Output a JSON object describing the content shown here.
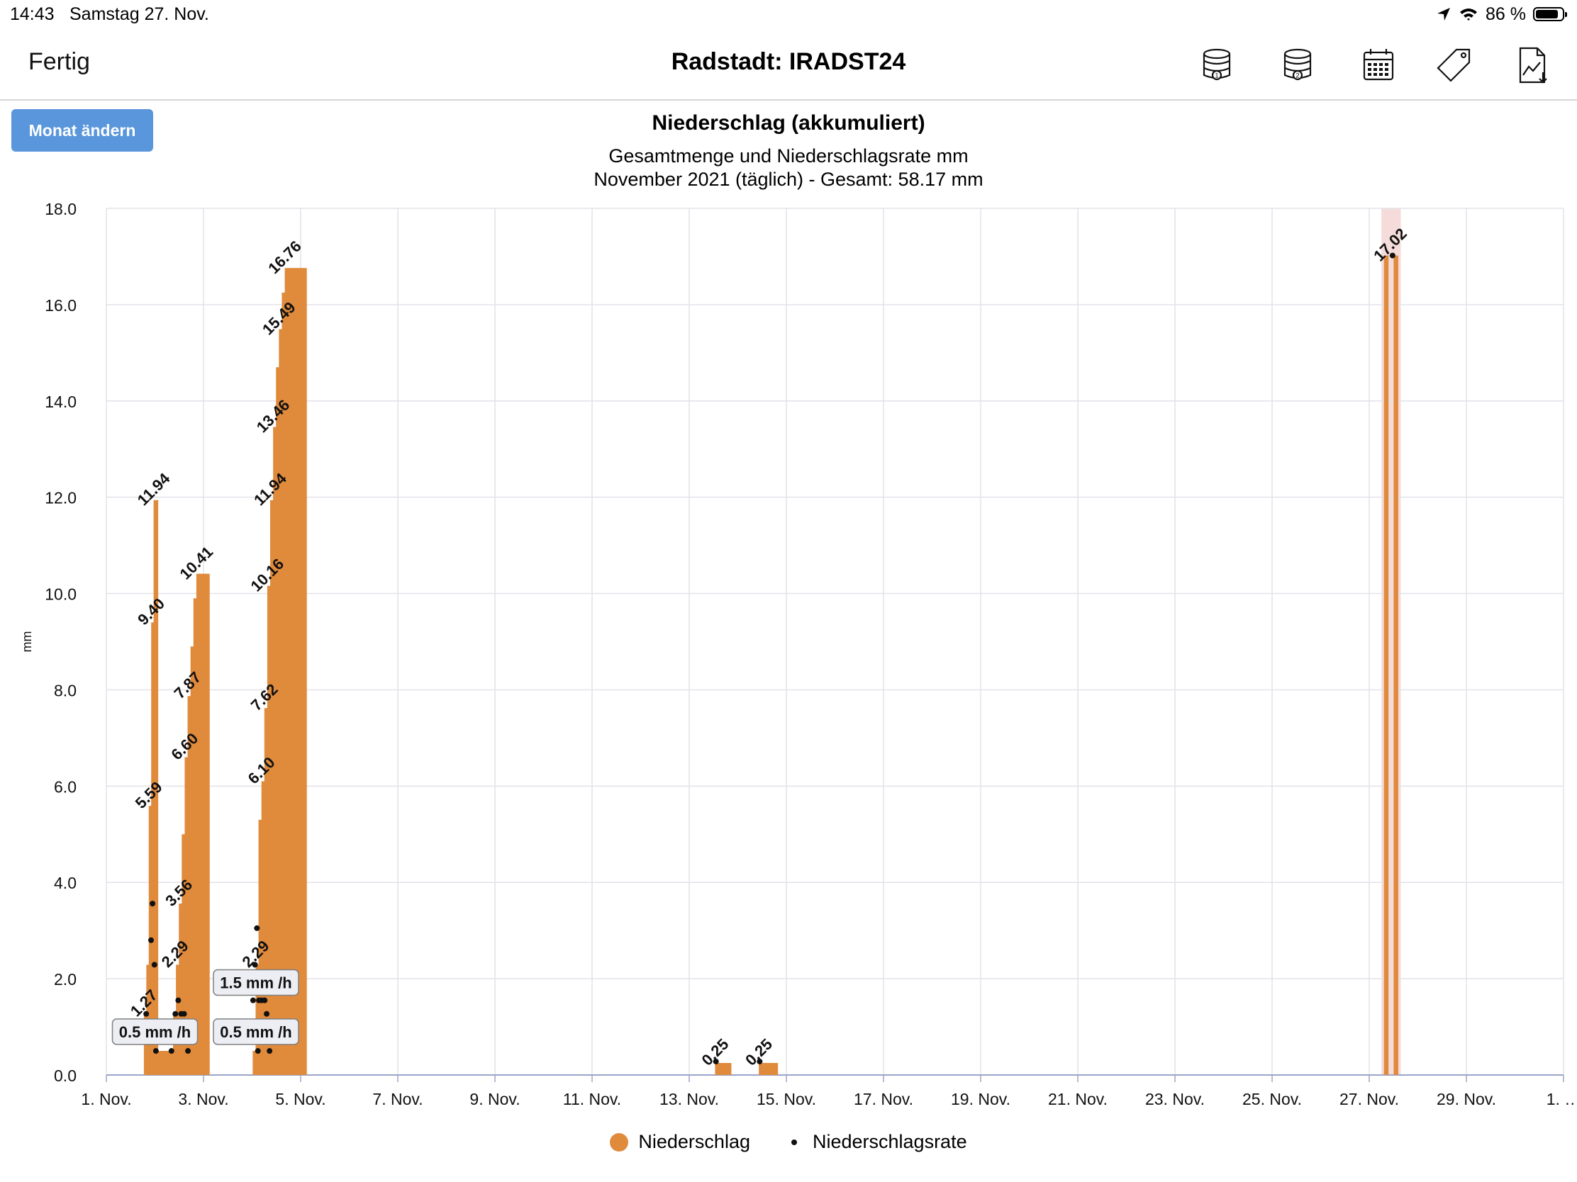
{
  "status_bar": {
    "time": "14:43",
    "date": "Samstag 27. Nov.",
    "battery_text": "86 %",
    "battery_level": 0.86
  },
  "nav": {
    "done_label": "Fertig",
    "title": "Radstadt: IRADST24",
    "icons": [
      "database-1-icon",
      "database-2-icon",
      "calendar-icon",
      "tag-icon",
      "chart-export-icon"
    ]
  },
  "controls": {
    "change_month_label": "Monat ändern",
    "accent_color": "#5a96dc"
  },
  "chart_data": {
    "type": "bar",
    "title": "Niederschlag (akkumuliert)",
    "subtitle": "Gesamtmenge und Niederschlagsrate mm",
    "subtitle2": "November 2021 (täglich) - Gesamt: 58.17 mm",
    "ylabel": "mm",
    "xlabel": "",
    "ylim": [
      0,
      18
    ],
    "y_ticks": [
      "0.0",
      "2.0",
      "4.0",
      "6.0",
      "8.0",
      "10.0",
      "12.0",
      "14.0",
      "16.0",
      "18.0"
    ],
    "x_range_days": [
      1,
      31
    ],
    "x_ticks": [
      {
        "day": 1,
        "label": "1. Nov."
      },
      {
        "day": 3,
        "label": "3. Nov."
      },
      {
        "day": 5,
        "label": "5. Nov."
      },
      {
        "day": 7,
        "label": "7. Nov."
      },
      {
        "day": 9,
        "label": "9. Nov."
      },
      {
        "day": 11,
        "label": "11. Nov."
      },
      {
        "day": 13,
        "label": "13. Nov."
      },
      {
        "day": 15,
        "label": "15. Nov."
      },
      {
        "day": 17,
        "label": "17. Nov."
      },
      {
        "day": 19,
        "label": "19. Nov."
      },
      {
        "day": 21,
        "label": "21. Nov."
      },
      {
        "day": 23,
        "label": "23. Nov."
      },
      {
        "day": 25,
        "label": "25. Nov."
      },
      {
        "day": 27,
        "label": "27. Nov."
      },
      {
        "day": 29,
        "label": "29. Nov."
      },
      {
        "day": 31,
        "label": "1. …"
      }
    ],
    "grid": true,
    "legend_position": "bottom-center",
    "highlight_day": {
      "start": 27.25,
      "end": 27.65,
      "color": "#f5dcda"
    },
    "series": [
      {
        "name": "Niederschlag",
        "color": "#e08a3c",
        "points": [
          {
            "x": 1.82,
            "y": 1.27
          },
          {
            "x": 1.87,
            "y": 2.29
          },
          {
            "x": 1.92,
            "y": 5.59
          },
          {
            "x": 1.97,
            "y": 9.4
          },
          {
            "x": 2.02,
            "y": 11.94
          },
          {
            "x": 2.1,
            "y": 0.5
          },
          {
            "x": 2.18,
            "y": 0.5
          },
          {
            "x": 2.26,
            "y": 0.5
          },
          {
            "x": 2.34,
            "y": 0.5
          },
          {
            "x": 2.42,
            "y": 1.27
          },
          {
            "x": 2.48,
            "y": 2.29
          },
          {
            "x": 2.54,
            "y": 3.56
          },
          {
            "x": 2.6,
            "y": 5.0
          },
          {
            "x": 2.66,
            "y": 6.6
          },
          {
            "x": 2.72,
            "y": 7.87
          },
          {
            "x": 2.78,
            "y": 8.9
          },
          {
            "x": 2.84,
            "y": 9.9
          },
          {
            "x": 2.9,
            "y": 10.41
          },
          {
            "x": 2.96,
            "y": 10.41
          },
          {
            "x": 3.02,
            "y": 10.41
          },
          {
            "x": 3.08,
            "y": 10.41
          },
          {
            "x": 4.06,
            "y": 0.5
          },
          {
            "x": 4.12,
            "y": 2.29
          },
          {
            "x": 4.18,
            "y": 5.3
          },
          {
            "x": 4.24,
            "y": 6.1
          },
          {
            "x": 4.3,
            "y": 7.62
          },
          {
            "x": 4.36,
            "y": 10.16
          },
          {
            "x": 4.42,
            "y": 11.94
          },
          {
            "x": 4.48,
            "y": 13.46
          },
          {
            "x": 4.54,
            "y": 14.7
          },
          {
            "x": 4.6,
            "y": 15.49
          },
          {
            "x": 4.66,
            "y": 16.25
          },
          {
            "x": 4.72,
            "y": 16.76
          },
          {
            "x": 4.78,
            "y": 16.76
          },
          {
            "x": 4.84,
            "y": 16.76
          },
          {
            "x": 4.9,
            "y": 16.76
          },
          {
            "x": 4.96,
            "y": 16.76
          },
          {
            "x": 5.02,
            "y": 16.76
          },
          {
            "x": 5.08,
            "y": 16.76
          },
          {
            "x": 13.58,
            "y": 0.25
          },
          {
            "x": 13.64,
            "y": 0.25
          },
          {
            "x": 13.7,
            "y": 0.25
          },
          {
            "x": 13.76,
            "y": 0.25
          },
          {
            "x": 13.82,
            "y": 0.25
          },
          {
            "x": 14.48,
            "y": 0.25
          },
          {
            "x": 14.54,
            "y": 0.25
          },
          {
            "x": 14.6,
            "y": 0.25
          },
          {
            "x": 14.66,
            "y": 0.25
          },
          {
            "x": 14.72,
            "y": 0.25
          },
          {
            "x": 14.78,
            "y": 0.25
          },
          {
            "x": 27.35,
            "y": 17.02
          },
          {
            "x": 27.55,
            "y": 17.02
          }
        ]
      },
      {
        "name": "Niederschlagsrate",
        "color": "#111111",
        "points": [
          {
            "x": 1.82,
            "y": 1.27
          },
          {
            "x": 1.92,
            "y": 2.8
          },
          {
            "x": 1.95,
            "y": 3.56
          },
          {
            "x": 1.99,
            "y": 2.29
          },
          {
            "x": 2.02,
            "y": 0.5
          },
          {
            "x": 2.34,
            "y": 0.5
          },
          {
            "x": 2.42,
            "y": 1.27
          },
          {
            "x": 2.48,
            "y": 1.55
          },
          {
            "x": 2.54,
            "y": 1.27
          },
          {
            "x": 2.6,
            "y": 1.27
          },
          {
            "x": 2.68,
            "y": 0.5
          },
          {
            "x": 4.02,
            "y": 1.55
          },
          {
            "x": 4.06,
            "y": 2.29
          },
          {
            "x": 4.1,
            "y": 3.05
          },
          {
            "x": 4.12,
            "y": 0.5
          },
          {
            "x": 4.14,
            "y": 1.55
          },
          {
            "x": 4.2,
            "y": 1.55
          },
          {
            "x": 4.26,
            "y": 1.55
          },
          {
            "x": 4.3,
            "y": 1.27
          },
          {
            "x": 4.36,
            "y": 0.5
          },
          {
            "x": 13.55,
            "y": 0.28
          },
          {
            "x": 14.45,
            "y": 0.28
          },
          {
            "x": 27.48,
            "y": 17.02
          }
        ]
      }
    ],
    "data_labels": [
      {
        "x": 1.82,
        "y": 1.27,
        "text": "1.27"
      },
      {
        "x": 1.92,
        "y": 5.59,
        "text": "5.59"
      },
      {
        "x": 1.97,
        "y": 9.4,
        "text": "9.40"
      },
      {
        "x": 2.02,
        "y": 11.94,
        "text": "11.94"
      },
      {
        "x": 2.46,
        "y": 2.29,
        "text": "2.29"
      },
      {
        "x": 2.54,
        "y": 3.56,
        "text": "3.56"
      },
      {
        "x": 2.66,
        "y": 6.6,
        "text": "6.60"
      },
      {
        "x": 2.72,
        "y": 7.87,
        "text": "7.87"
      },
      {
        "x": 2.9,
        "y": 10.41,
        "text": "10.41"
      },
      {
        "x": 4.12,
        "y": 2.29,
        "text": "2.29"
      },
      {
        "x": 4.24,
        "y": 6.1,
        "text": "6.10"
      },
      {
        "x": 4.3,
        "y": 7.62,
        "text": "7.62"
      },
      {
        "x": 4.36,
        "y": 10.16,
        "text": "10.16"
      },
      {
        "x": 4.42,
        "y": 11.94,
        "text": "11.94"
      },
      {
        "x": 4.48,
        "y": 13.46,
        "text": "13.46"
      },
      {
        "x": 4.6,
        "y": 15.49,
        "text": "15.49"
      },
      {
        "x": 4.72,
        "y": 16.76,
        "text": "16.76"
      },
      {
        "x": 13.58,
        "y": 0.25,
        "text": "0.25"
      },
      {
        "x": 14.48,
        "y": 0.25,
        "text": "0.25"
      },
      {
        "x": 27.48,
        "y": 17.02,
        "text": "17.02"
      }
    ],
    "rate_labels": [
      {
        "x": 2.0,
        "y": 0.9,
        "text": "0.5 mm /h"
      },
      {
        "x": 4.08,
        "y": 0.9,
        "text": "0.5 mm /h"
      },
      {
        "x": 4.08,
        "y": 1.92,
        "text": "1.5 mm /h"
      }
    ]
  }
}
